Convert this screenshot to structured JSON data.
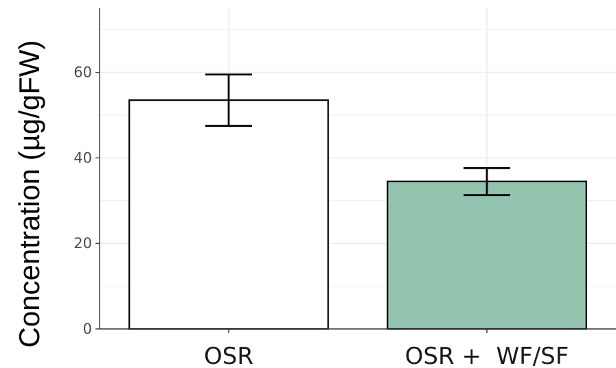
{
  "chart_data": {
    "type": "bar",
    "title": "",
    "xlabel": "",
    "ylabel": "Concentration  (µg/gFW)",
    "categories": [
      "OSR",
      "OSR +  WF/SF"
    ],
    "values": [
      53.5,
      34.5
    ],
    "error_low": [
      47.5,
      31.3
    ],
    "error_high": [
      59.5,
      37.6
    ],
    "ylim": [
      0,
      75
    ],
    "yticks": [
      0,
      20,
      40,
      60
    ],
    "grid": true,
    "legend": "none",
    "bar_colors": [
      "#ffffff",
      "#91c3af"
    ],
    "bar_outline_color": "#000000",
    "grid_color": "#ebebeb",
    "axis_color": "#333333"
  }
}
